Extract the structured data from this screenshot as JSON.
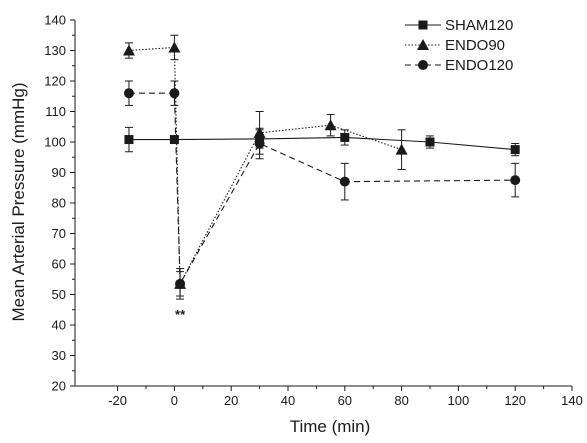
{
  "chart_data": {
    "type": "line",
    "xlabel": "Time (min)",
    "ylabel": "Mean Arterial Pressure (mmHg)",
    "xlim": [
      -35,
      140
    ],
    "ylim": [
      20,
      140
    ],
    "xticks": [
      "-20",
      "0",
      "20",
      "40",
      "60",
      "80",
      "100",
      "120",
      "140"
    ],
    "yticks": [
      "20",
      "30",
      "40",
      "50",
      "60",
      "70",
      "80",
      "90",
      "100",
      "110",
      "120",
      "130",
      "140"
    ],
    "grid": false,
    "legend_position": "top-right",
    "annotations": [
      {
        "text": "**",
        "x": 2,
        "y": 42
      }
    ],
    "series": [
      {
        "name": "SHAM120",
        "marker": "square",
        "line_style": "solid",
        "x": [
          -16,
          0,
          30,
          60,
          90,
          120
        ],
        "y": [
          100.8,
          100.8,
          101,
          101.5,
          100,
          97.5
        ],
        "err": [
          4,
          0,
          3,
          2.5,
          2,
          2
        ]
      },
      {
        "name": "ENDO90",
        "marker": "triangle",
        "line_style": "dotted",
        "x": [
          -16,
          0,
          2,
          30,
          55,
          80
        ],
        "y": [
          130,
          131,
          53.5,
          103,
          105.5,
          97.5
        ],
        "err": [
          2.5,
          4,
          4,
          7,
          3.5,
          6.5
        ]
      },
      {
        "name": "ENDO120",
        "marker": "circle",
        "line_style": "dashed",
        "x": [
          -16,
          0,
          2,
          30,
          60,
          120
        ],
        "y": [
          116,
          116,
          53.5,
          99.5,
          87,
          87.5
        ],
        "err": [
          4,
          4,
          5,
          5,
          6,
          5.5
        ]
      }
    ]
  }
}
